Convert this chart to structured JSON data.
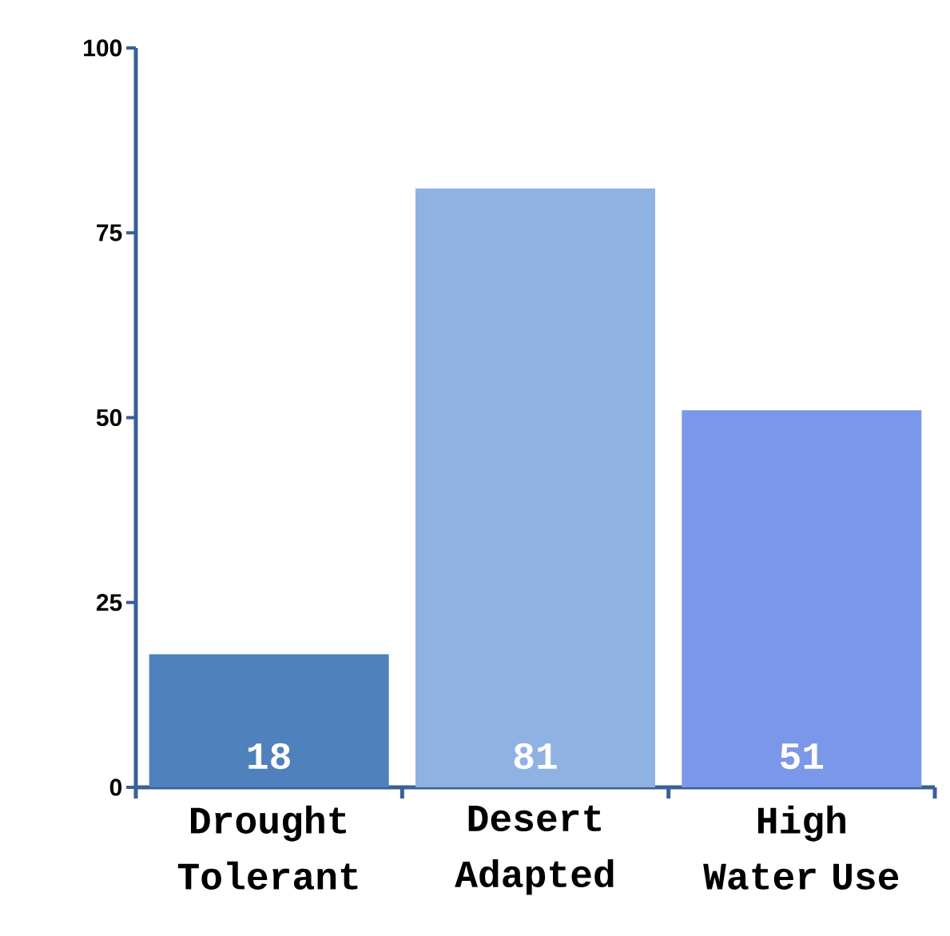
{
  "chart_data": {
    "type": "bar",
    "categories": [
      "Drought Tolerant",
      "Desert Adapted",
      "High Water Use"
    ],
    "values": [
      18,
      81,
      51
    ],
    "colors": [
      "#4f81bd",
      "#8fb2e2",
      "#7b97ea"
    ],
    "ylim": [
      0,
      100
    ],
    "yticks": [
      0,
      25,
      50,
      75,
      100
    ],
    "data_labels": true
  }
}
